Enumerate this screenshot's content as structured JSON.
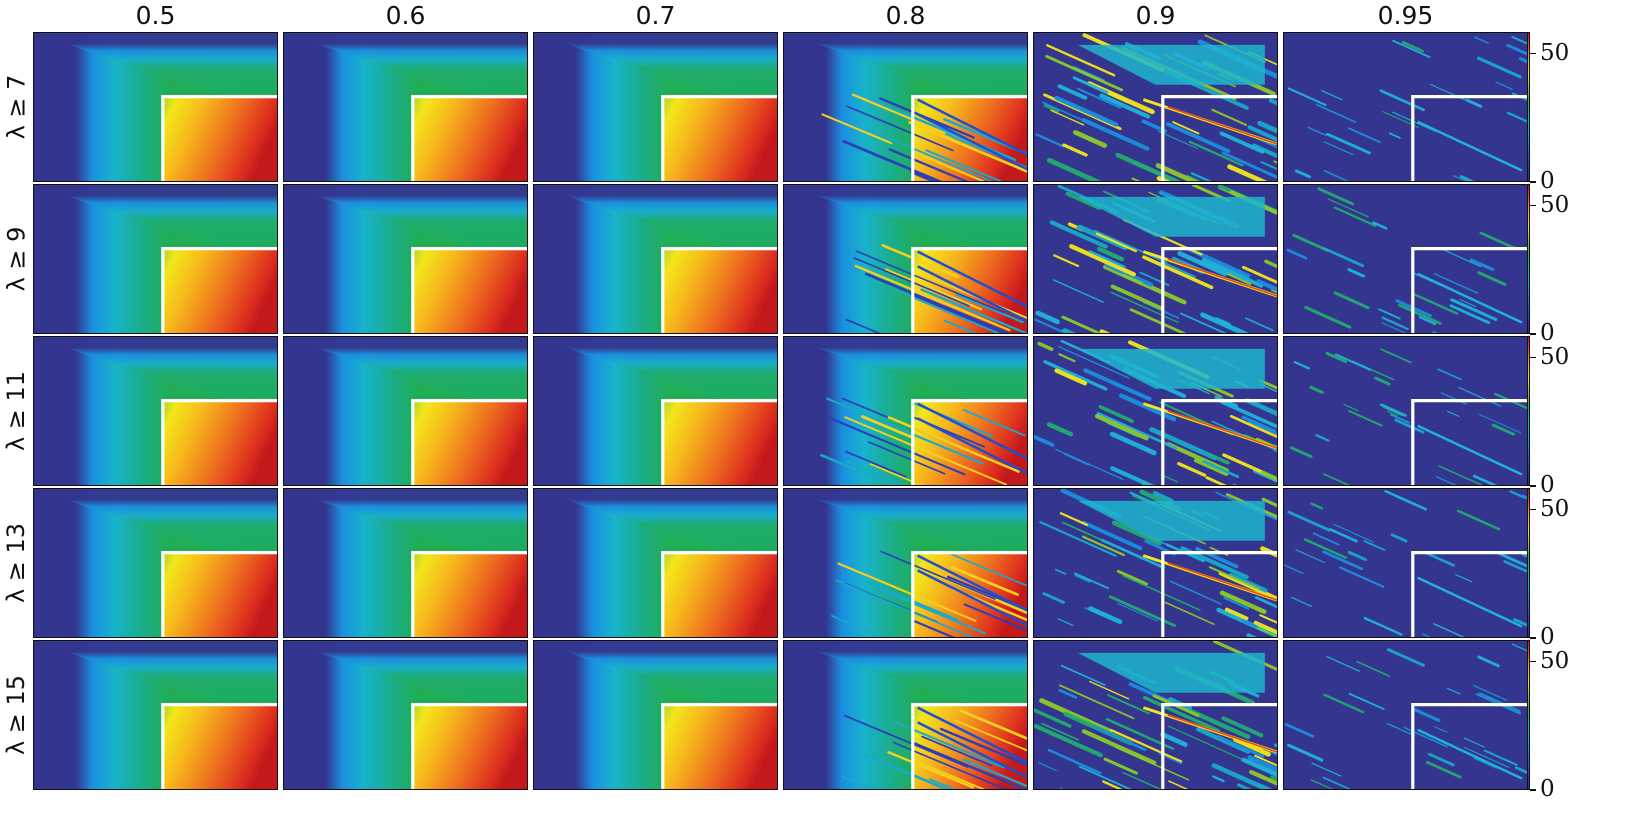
{
  "column_titles": [
    "0.5",
    "0.6",
    "0.7",
    "0.8",
    "0.9",
    "0.95"
  ],
  "row_labels": [
    "λ ≥ 7",
    "λ ≥ 9",
    "λ ≥ 11",
    "λ ≥ 13",
    "λ ≥ 15"
  ],
  "colorbar": {
    "ticks": [
      "50",
      "0"
    ],
    "colormap": [
      "#30308a",
      "#2d4fd2",
      "#1b97e6",
      "#18b7b2",
      "#1fae5e",
      "#8cca2a",
      "#f2e51c",
      "#f4a21e",
      "#e8461f",
      "#c81a1a"
    ]
  },
  "chart_data": {
    "type": "heatmap",
    "layout": "small-multiples grid: 5 rows x 6 columns",
    "columns": [
      "0.5",
      "0.6",
      "0.7",
      "0.8",
      "0.9",
      "0.95"
    ],
    "rows": [
      "λ ≥ 7",
      "λ ≥ 9",
      "λ ≥ 11",
      "λ ≥ 13",
      "λ ≥ 15"
    ],
    "color_range": [
      0,
      58
    ],
    "colorbar_ticks": [
      0,
      50
    ],
    "grid": false,
    "legend": "colorbar right of each row",
    "overlay": "white L-shaped boundary line in each panel"
  }
}
